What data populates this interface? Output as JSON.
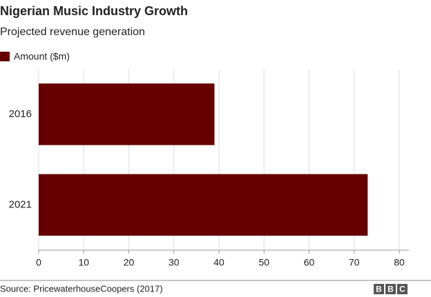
{
  "chart_data": {
    "type": "bar",
    "orientation": "horizontal",
    "title": "Nigerian Music Industry Growth",
    "subtitle": "Projected revenue generation",
    "categories": [
      "2016",
      "2021"
    ],
    "series": [
      {
        "name": "Amount ($m)",
        "color": "#660000",
        "values": [
          39,
          73
        ]
      }
    ],
    "xlim": [
      0,
      80
    ],
    "xticks": [
      0,
      10,
      20,
      30,
      40,
      50,
      60,
      70,
      80
    ],
    "grid": true,
    "source": "Source: PricewaterhouseCoopers (2017)",
    "logo": [
      "B",
      "B",
      "C"
    ]
  }
}
